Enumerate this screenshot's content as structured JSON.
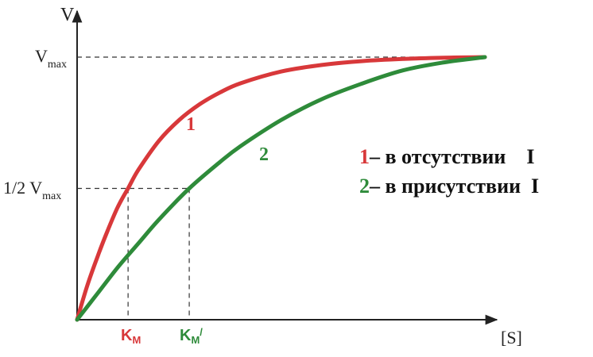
{
  "chart_data": {
    "type": "line",
    "title": "",
    "xlabel": "[S]",
    "ylabel": "V",
    "grid": false,
    "xlim": [
      0,
      10
    ],
    "ylim": [
      0,
      1.2
    ],
    "y_tick_labels": {
      "vmax": {
        "main": "V",
        "sub": "max",
        "value": 1.0
      },
      "half": {
        "main": "1/2 V",
        "sub": "max",
        "value": 0.5
      }
    },
    "x_markers": {
      "km": {
        "main": "K",
        "sub": "M",
        "value": 1.25,
        "color": "#d8383a"
      },
      "km_prime": {
        "main": "K",
        "sub": "M",
        "sup": "/",
        "value": 2.75,
        "color": "#2e8b3a"
      }
    },
    "series": [
      {
        "name": "1",
        "color": "#d8383a",
        "curve_label": "1",
        "legend_text": "– в отсутствии    I",
        "x": [
          0,
          0.25,
          0.5,
          0.75,
          1.0,
          1.25,
          1.5,
          2.0,
          2.5,
          3.0,
          3.5,
          4.0,
          5.0,
          6.0,
          7.0,
          8.0,
          9.0,
          10.0
        ],
        "y": [
          0,
          0.13,
          0.24,
          0.34,
          0.43,
          0.5,
          0.57,
          0.68,
          0.76,
          0.82,
          0.865,
          0.9,
          0.945,
          0.97,
          0.985,
          0.993,
          0.998,
          1.0
        ]
      },
      {
        "name": "2",
        "color": "#2e8b3a",
        "curve_label": "2",
        "legend_text": "– в присутствии  I",
        "x": [
          0,
          0.5,
          1.0,
          1.5,
          2.0,
          2.75,
          3.5,
          4.0,
          5.0,
          6.0,
          7.0,
          8.0,
          9.0,
          10.0
        ],
        "y": [
          0,
          0.1,
          0.2,
          0.29,
          0.38,
          0.5,
          0.6,
          0.66,
          0.76,
          0.84,
          0.9,
          0.95,
          0.98,
          1.0
        ]
      }
    ]
  }
}
